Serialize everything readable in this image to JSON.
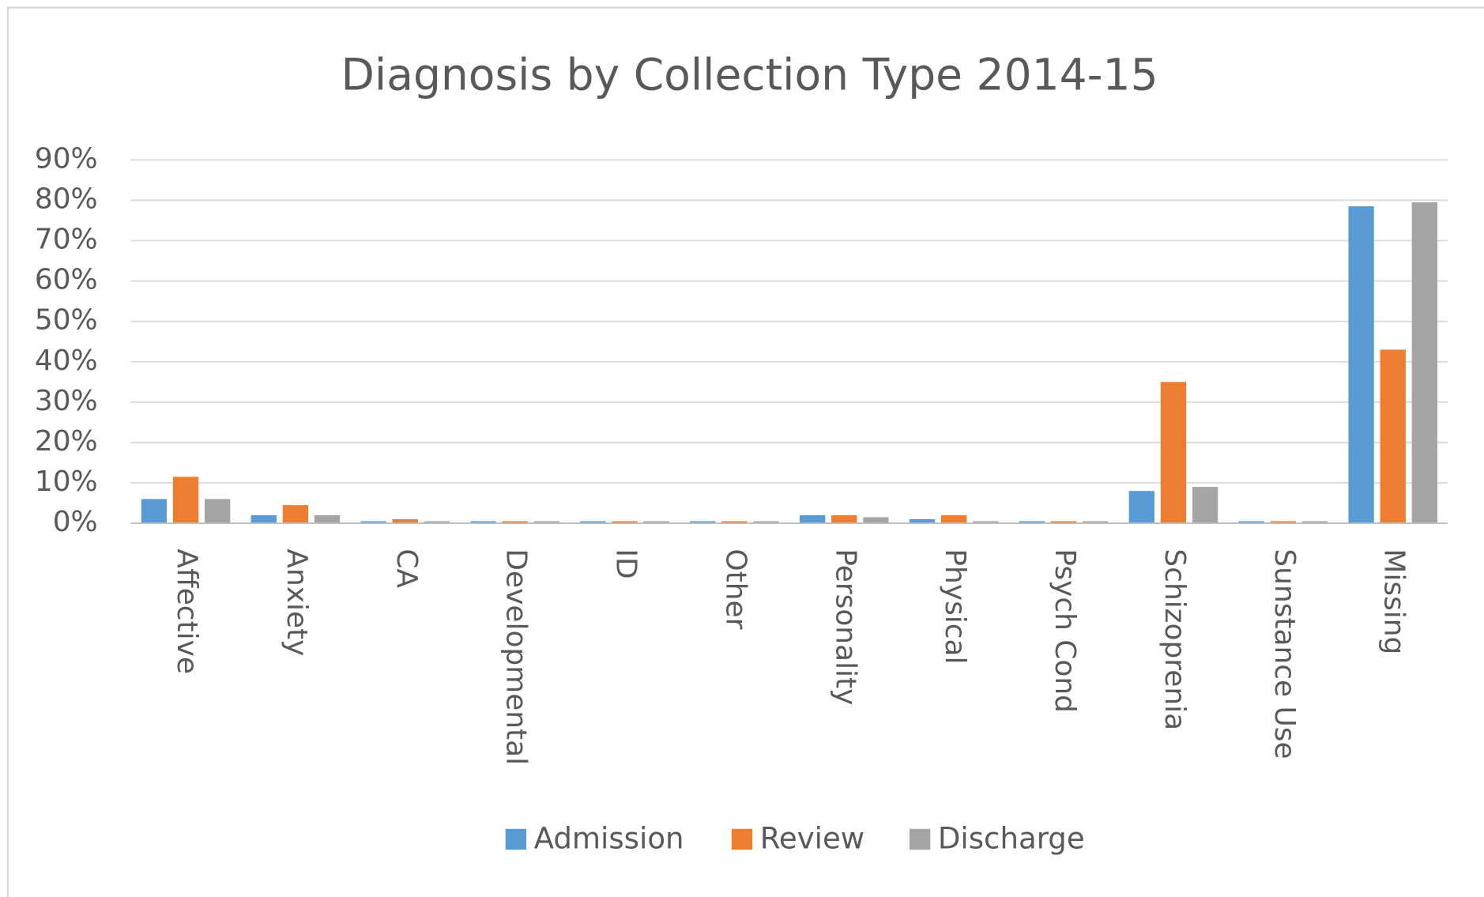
{
  "chart_data": {
    "type": "bar",
    "title": "Diagnosis by Collection Type 2014-15",
    "categories": [
      "Affective",
      "Anxiety",
      "CA",
      "Developmental",
      "ID",
      "Other",
      "Personality",
      "Physical",
      "Psych Cond",
      "Schizoprenia",
      "Sunstance Use",
      "Missing"
    ],
    "series": [
      {
        "name": "Admission",
        "color": "#5b9bd5",
        "values": [
          6,
          2,
          0.5,
          0.5,
          0.5,
          0.5,
          2,
          1,
          0.5,
          8,
          0.5,
          78.5
        ]
      },
      {
        "name": "Review",
        "color": "#ed7d31",
        "values": [
          11.5,
          4.5,
          1,
          0.5,
          0.5,
          0.5,
          2,
          2,
          0.5,
          35,
          0.5,
          43
        ]
      },
      {
        "name": "Discharge",
        "color": "#a5a5a5",
        "values": [
          6,
          2,
          0.5,
          0.5,
          0.5,
          0.5,
          1.5,
          0.5,
          0.5,
          9,
          0.5,
          79.5
        ]
      }
    ],
    "ylim": [
      0,
      90
    ],
    "yticks": [
      {
        "value": 0,
        "label": "0%"
      },
      {
        "value": 10,
        "label": "10%"
      },
      {
        "value": 20,
        "label": "20%"
      },
      {
        "value": 30,
        "label": "30%"
      },
      {
        "value": 40,
        "label": "40%"
      },
      {
        "value": 50,
        "label": "50%"
      },
      {
        "value": 60,
        "label": "60%"
      },
      {
        "value": 70,
        "label": "70%"
      },
      {
        "value": 80,
        "label": "80%"
      },
      {
        "value": 90,
        "label": "90%"
      }
    ],
    "grid": true,
    "legend": "bottom"
  }
}
